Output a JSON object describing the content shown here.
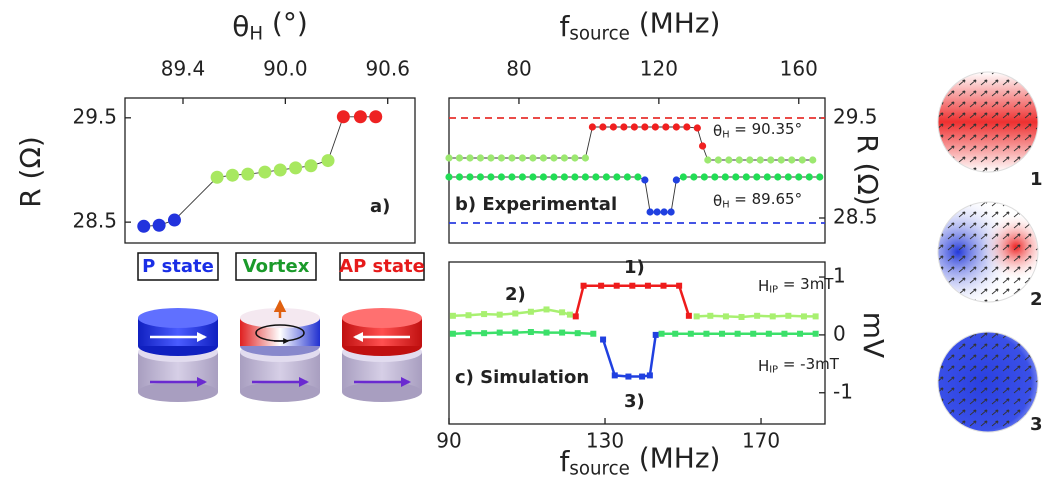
{
  "chart_data": [
    {
      "type": "line",
      "x_title": {
        "text": "θ",
        "sub": "H",
        "tail": " (°)"
      },
      "y_title": {
        "text": "R (Ω)"
      },
      "x_axis_position": "top",
      "y_axis_position": "left",
      "xlim": [
        89.06,
        90.76
      ],
      "ylim": [
        28.3,
        29.69
      ],
      "xticks": [
        89.4,
        {
          "value": 90,
          "label": "90.0"
        },
        90.6
      ],
      "yticks": [
        28.5,
        29.5
      ],
      "connector_color": "#333333",
      "series": [
        {
          "color": "#2233dd",
          "x": [
            89.17,
            89.26,
            89.35
          ],
          "values": [
            28.46,
            28.47,
            28.52
          ]
        },
        {
          "color": "#a8e860",
          "x": [
            89.6,
            89.69,
            89.78,
            89.88,
            89.97,
            90.06,
            90.15,
            90.25
          ],
          "values": [
            28.93,
            28.95,
            28.96,
            28.98,
            29.0,
            29.02,
            29.04,
            29.09
          ]
        },
        {
          "color": "#ee2222",
          "x": [
            90.34,
            90.44,
            90.53
          ],
          "values": [
            29.51,
            29.51,
            29.51
          ]
        }
      ],
      "annotations": [
        {
          "text": "a)"
        }
      ]
    },
    {
      "type": "line",
      "x_title": {
        "text": "f",
        "sub": "source",
        "tail": " (MHz)"
      },
      "y_title": {
        "text": "R (Ω)"
      },
      "x_axis_position": "top",
      "y_axis_position": "right",
      "xlim": [
        60,
        167.5
      ],
      "ylim": [
        28.25,
        29.7
      ],
      "xticks": [
        80,
        120,
        160
      ],
      "yticks": [
        28.5,
        29.5
      ],
      "connector_color": "#333333",
      "reference_lines": [
        {
          "value": 29.5,
          "color": "#e8322e"
        },
        {
          "value": 28.45,
          "color": "#2a3ce0"
        }
      ],
      "series": [
        {
          "color": "#9ce870",
          "x": [
            60,
            63,
            66,
            69,
            72,
            75,
            78,
            81,
            84,
            87,
            90,
            93,
            96,
            99
          ],
          "values": [
            29.1,
            29.1,
            29.1,
            29.1,
            29.1,
            29.1,
            29.1,
            29.1,
            29.1,
            29.1,
            29.1,
            29.1,
            29.1,
            29.1
          ]
        },
        {
          "color": "#f02020",
          "x": [
            101,
            104,
            107,
            110,
            113,
            116,
            119,
            122,
            125,
            128,
            131,
            132.5
          ],
          "values": [
            29.41,
            29.41,
            29.41,
            29.41,
            29.41,
            29.41,
            29.41,
            29.41,
            29.41,
            29.41,
            29.4,
            29.22
          ]
        },
        {
          "color": "#9ce870",
          "x": [
            134,
            137,
            140,
            143,
            146,
            149,
            152,
            155,
            158,
            161,
            164
          ],
          "values": [
            29.08,
            29.08,
            29.08,
            29.08,
            29.08,
            29.08,
            29.08,
            29.08,
            29.08,
            29.08,
            29.08
          ]
        },
        {
          "color": "#22dd55",
          "x": [
            60,
            63,
            66,
            69,
            72,
            75,
            78,
            81,
            84,
            87,
            90,
            93,
            96,
            99,
            102,
            105,
            108,
            111,
            114
          ],
          "values": [
            28.91,
            28.91,
            28.91,
            28.91,
            28.91,
            28.91,
            28.91,
            28.91,
            28.91,
            28.91,
            28.91,
            28.91,
            28.91,
            28.91,
            28.91,
            28.91,
            28.91,
            28.91,
            28.91
          ]
        },
        {
          "color": "#2040e0",
          "x": [
            116,
            117.5,
            119.5,
            121.5,
            123.5,
            125
          ],
          "values": [
            28.88,
            28.56,
            28.56,
            28.56,
            28.56,
            28.88
          ]
        },
        {
          "color": "#22dd55",
          "x": [
            127,
            130,
            133,
            136,
            139,
            142,
            145,
            148,
            151,
            154,
            157,
            160,
            163,
            166
          ],
          "values": [
            28.91,
            28.91,
            28.91,
            28.91,
            28.91,
            28.91,
            28.91,
            28.91,
            28.91,
            28.91,
            28.91,
            28.91,
            28.91,
            28.91
          ]
        }
      ],
      "annotations": [
        {
          "text": "θ",
          "sub": "H",
          "tail": " = 90.35°"
        },
        {
          "text": "θ",
          "sub": "H",
          "tail": " = 89.65°"
        },
        {
          "text": "b) Experimental"
        }
      ]
    },
    {
      "type": "line",
      "x_title": {
        "text": "f",
        "sub": "source",
        "tail": " (MHz)"
      },
      "y_title": {
        "text": "mV"
      },
      "x_axis_position": "bottom",
      "y_axis_position": "right",
      "xlim": [
        90,
        186.4
      ],
      "ylim": [
        -1.54,
        1.26
      ],
      "xticks": [
        90,
        130,
        170
      ],
      "yticks": [
        -1,
        0,
        1
      ],
      "series_lines": true,
      "series": [
        {
          "color": "#a8f070",
          "x": [
            91,
            95,
            99,
            103,
            107,
            111,
            115,
            119,
            121
          ],
          "values": [
            0.33,
            0.34,
            0.36,
            0.35,
            0.37,
            0.4,
            0.44,
            0.39,
            0.35
          ]
        },
        {
          "color": "#ee1c1c",
          "x": [
            122.5,
            124.5,
            129,
            133,
            137,
            141,
            145,
            149,
            151.5
          ],
          "values": [
            0.32,
            0.85,
            0.85,
            0.85,
            0.85,
            0.85,
            0.85,
            0.85,
            0.33
          ]
        },
        {
          "color": "#a8f070",
          "x": [
            153.5,
            157,
            161,
            165,
            169,
            173,
            177,
            181,
            184
          ],
          "values": [
            0.32,
            0.33,
            0.32,
            0.31,
            0.33,
            0.32,
            0.33,
            0.32,
            0.32
          ]
        },
        {
          "color": "#3ce06a",
          "x": [
            91,
            95,
            99,
            103,
            107,
            111,
            115,
            119,
            123,
            127
          ],
          "values": [
            0.02,
            0.03,
            0.03,
            0.04,
            0.04,
            0.05,
            0.04,
            0.04,
            0.03,
            0.02
          ]
        },
        {
          "color": "#2040e0",
          "x": [
            129.5,
            132.5,
            136,
            139.5,
            141.5,
            143
          ],
          "values": [
            -0.08,
            -0.7,
            -0.72,
            -0.72,
            -0.7,
            0.0
          ]
        },
        {
          "color": "#3ce06a",
          "x": [
            144.5,
            148,
            152,
            156,
            160,
            164,
            168,
            172,
            176,
            180,
            184
          ],
          "values": [
            0.02,
            0.02,
            0.02,
            0.02,
            0.02,
            0.02,
            0.02,
            0.02,
            0.02,
            0.02,
            0.02
          ]
        }
      ],
      "annotations": [
        {
          "text": "H",
          "sub": "IP",
          "tail": " = 3mT"
        },
        {
          "text": "H",
          "sub": "IP",
          "tail": " = -3mT"
        },
        {
          "text": "c) Simulation"
        },
        {
          "text": "1)"
        },
        {
          "text": "2)"
        },
        {
          "text": "3)"
        }
      ]
    }
  ],
  "states": [
    {
      "label": "P state",
      "color": "#1a2ee6"
    },
    {
      "label": "Vortex",
      "color": "#1a9a2a"
    },
    {
      "label": "AP state",
      "color": "#e61a1a"
    }
  ],
  "disks": [
    "1)",
    "2)",
    "3)"
  ]
}
